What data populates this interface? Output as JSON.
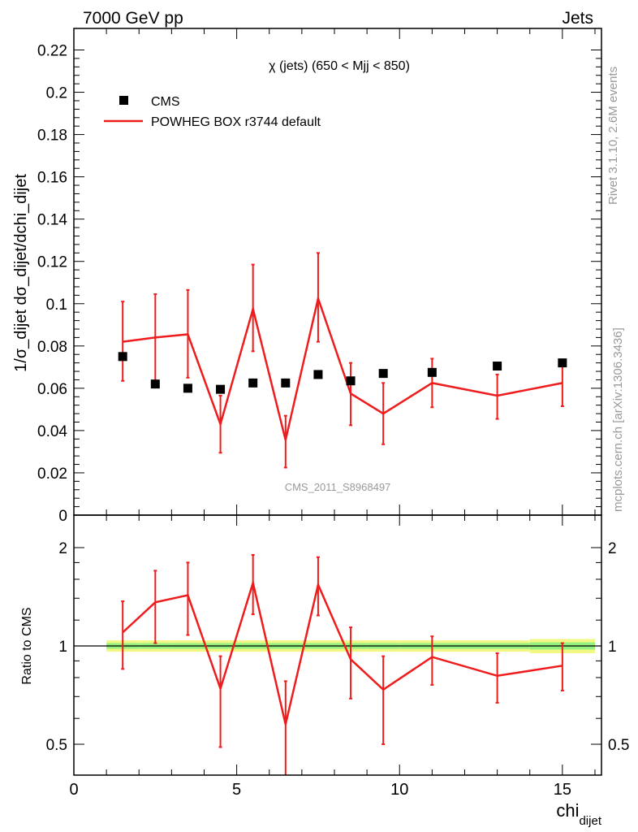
{
  "header": {
    "left": "7000 GeV pp",
    "right": "Jets"
  },
  "side_labels": {
    "rivet": "Rivet 3.1.10,  2.6M events",
    "mcplots": "mcplots.cern.ch [arXiv:1306.3436]"
  },
  "watermark": "CMS_2011_S8968497",
  "colors": {
    "mc": "#ee1c1c",
    "data": "#000000",
    "band_inner": "#93f07e",
    "band_outer": "#f2f783",
    "watermark": "#999999"
  },
  "chart_data": [
    {
      "type": "scatter",
      "title": "χ (jets) (650 < Mjj <  850)",
      "xlabel": "chi",
      "xlabel_sub": "dijet",
      "ylabel": "1/σ_dijet dσ_dijet/dchi_dijet",
      "xlim": [
        0,
        16.2
      ],
      "ylim": [
        0,
        0.23
      ],
      "y_ticks": [
        0,
        0.02,
        0.04,
        0.06,
        0.08,
        0.1,
        0.12,
        0.14,
        0.16,
        0.18,
        0.2,
        0.22
      ],
      "y_tick_labels": [
        "0",
        "0.02",
        "0.04",
        "0.06",
        "0.08",
        "0.1",
        "0.12",
        "0.14",
        "0.16",
        "0.18",
        "0.2",
        "0.22"
      ],
      "legend": {
        "placement": "top-left",
        "entries": [
          "CMS",
          "POWHEG BOX r3744 default"
        ]
      },
      "series": [
        {
          "name": "CMS",
          "style": "markers",
          "x": [
            1.5,
            2.5,
            3.5,
            4.5,
            5.5,
            6.5,
            7.5,
            8.5,
            9.5,
            11,
            13,
            15
          ],
          "y": [
            0.075,
            0.062,
            0.06,
            0.0595,
            0.0625,
            0.0625,
            0.0665,
            0.0635,
            0.067,
            0.0675,
            0.0705,
            0.072
          ]
        },
        {
          "name": "POWHEG BOX r3744 default",
          "style": "line-errorbars",
          "x": [
            1.5,
            2.5,
            3.5,
            4.5,
            5.5,
            6.5,
            7.5,
            8.5,
            9.5,
            11,
            13,
            15
          ],
          "y": [
            0.082,
            0.084,
            0.0855,
            0.043,
            0.0975,
            0.0355,
            0.1025,
            0.0575,
            0.048,
            0.0625,
            0.0565,
            0.0625
          ],
          "y_low": [
            0.0635,
            0.063,
            0.065,
            0.0295,
            0.0775,
            0.0225,
            0.082,
            0.0425,
            0.0335,
            0.051,
            0.0455,
            0.0515
          ],
          "y_high": [
            0.101,
            0.1045,
            0.1065,
            0.0565,
            0.1185,
            0.047,
            0.124,
            0.072,
            0.0625,
            0.074,
            0.0665,
            0.0735
          ]
        }
      ]
    },
    {
      "type": "line",
      "ylabel": "Ratio to CMS",
      "xlim": [
        0,
        16.2
      ],
      "ylim": [
        0.35,
        2.3
      ],
      "y_scale": "log",
      "x_ticks": [
        0,
        5,
        10,
        15
      ],
      "x_tick_labels": [
        "0",
        "5",
        "10",
        "15"
      ],
      "y_ticks": [
        0.5,
        1,
        2
      ],
      "y_tick_labels": [
        "0.5",
        "1",
        "2"
      ],
      "reference_line": 1,
      "band": {
        "x_edges": [
          1,
          2,
          3,
          4,
          5,
          6,
          7,
          8,
          9,
          10,
          12,
          14,
          16
        ],
        "inner_half_width": [
          0.02,
          0.02,
          0.02,
          0.02,
          0.02,
          0.02,
          0.02,
          0.02,
          0.02,
          0.02,
          0.02,
          0.025
        ],
        "outer_half_width": [
          0.04,
          0.04,
          0.04,
          0.04,
          0.04,
          0.04,
          0.04,
          0.04,
          0.04,
          0.04,
          0.04,
          0.05
        ]
      },
      "series": [
        {
          "name": "POWHEG BOX r3744 default",
          "x": [
            1.5,
            2.5,
            3.5,
            4.5,
            5.5,
            6.5,
            7.5,
            8.5,
            9.5,
            11,
            13,
            15
          ],
          "y": [
            1.1,
            1.36,
            1.43,
            0.74,
            1.56,
            0.575,
            1.54,
            0.91,
            0.735,
            0.925,
            0.81,
            0.87
          ],
          "y_low": [
            0.85,
            1.02,
            1.08,
            0.49,
            1.25,
            0.35,
            1.24,
            0.69,
            0.5,
            0.76,
            0.67,
            0.73
          ],
          "y_high": [
            1.37,
            1.7,
            1.8,
            0.93,
            1.9,
            0.78,
            1.87,
            1.14,
            0.93,
            1.07,
            0.95,
            1.02
          ]
        }
      ]
    }
  ]
}
